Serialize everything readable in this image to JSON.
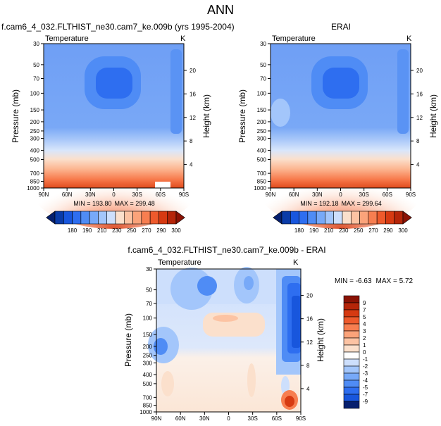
{
  "figure_title": "ANN",
  "chart_data": [
    {
      "type": "heatmap",
      "title": "f.cam6_4_032.FLTHIST_ne30.cam7_ke.009b (yrs 1995-2004)",
      "left_label": "Temperature",
      "units": "K",
      "ylabel": "Pressure (mb)",
      "y2label": "Height (km)",
      "min_text": "MIN = 193.80",
      "max_text": "MAX = 299.48",
      "x_ticks": [
        "90N",
        "60N",
        "30N",
        "0",
        "30S",
        "60S",
        "90S"
      ],
      "y_ticks": [
        30,
        50,
        70,
        100,
        150,
        200,
        250,
        300,
        400,
        500,
        700,
        850,
        1000
      ],
      "height_ticks": [
        4,
        8,
        12,
        16,
        20
      ],
      "colorbar_labels": [
        "180",
        "190",
        "210",
        "230",
        "250",
        "270",
        "290",
        "300"
      ],
      "colors": [
        "#061f6e",
        "#0a3ba8",
        "#1856dd",
        "#2e6ef0",
        "#4f8cf5",
        "#77a9f8",
        "#a3c6fb",
        "#cddffc",
        "#fbe0cc",
        "#fcc3a3",
        "#fba37a",
        "#f77e50",
        "#ee5a2c",
        "#d63a12",
        "#b52509",
        "#8a1204"
      ]
    },
    {
      "type": "heatmap",
      "title": "ERAI",
      "left_label": "Temperature",
      "units": "K",
      "ylabel": "Pressure (mb)",
      "y2label": "Height (km)",
      "min_text": "MIN = 192.18",
      "max_text": "MAX = 299.64",
      "x_ticks": [
        "90N",
        "60N",
        "30N",
        "0",
        "30S",
        "60S",
        "90S"
      ],
      "y_ticks": [
        30,
        50,
        70,
        100,
        150,
        200,
        250,
        300,
        400,
        500,
        700,
        850,
        1000
      ],
      "height_ticks": [
        4,
        8,
        12,
        16,
        20
      ],
      "colorbar_labels": [
        "180",
        "190",
        "210",
        "230",
        "250",
        "270",
        "290",
        "300"
      ]
    },
    {
      "type": "heatmap",
      "title": "f.cam6_4_032.FLTHIST_ne30.cam7_ke.009b - ERAI",
      "left_label": "Temperature",
      "units": "K",
      "ylabel": "Pressure (mb)",
      "y2label": "Height (km)",
      "min_text": "MIN = -6.63",
      "max_text": "MAX =  5.72",
      "x_ticks": [
        "90N",
        "60N",
        "30N",
        "0",
        "30S",
        "60S",
        "90S"
      ],
      "y_ticks": [
        30,
        50,
        70,
        100,
        150,
        200,
        250,
        300,
        400,
        500,
        700,
        850,
        1000
      ],
      "height_ticks": [
        4,
        8,
        12,
        16,
        20
      ],
      "colorbar_labels": [
        "9",
        "7",
        "5",
        "4",
        "3",
        "2",
        "1",
        "0",
        "-1",
        "-2",
        "-3",
        "-4",
        "-5",
        "-7",
        "-9"
      ],
      "colors": [
        "#8a1204",
        "#b52509",
        "#d63a12",
        "#ee5a2c",
        "#f77e50",
        "#fba37a",
        "#fcc3a3",
        "#fbe0cc",
        "#ffffff",
        "#cddffc",
        "#a3c6fb",
        "#77a9f8",
        "#4f8cf5",
        "#2e6ef0",
        "#1856dd",
        "#061f6e"
      ]
    }
  ]
}
